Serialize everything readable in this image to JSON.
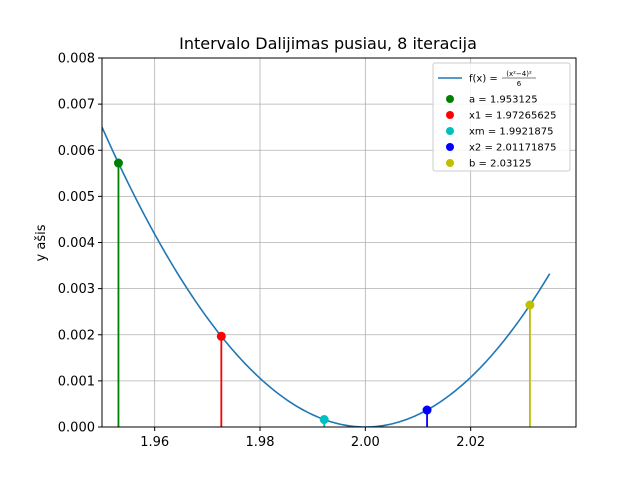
{
  "chart_data": {
    "type": "line",
    "title": "Intervalo Dalijimas pusiau, 8 iteracija",
    "xlabel": "",
    "ylabel": "y ašis",
    "xlim": [
      1.95,
      2.04
    ],
    "ylim": [
      0.0,
      0.008
    ],
    "grid": true,
    "legend_position": "top-right",
    "x_ticks": [
      "1.96",
      "1.98",
      "2.00",
      "2.02"
    ],
    "y_ticks": [
      "0.000",
      "0.001",
      "0.002",
      "0.003",
      "0.004",
      "0.005",
      "0.006",
      "0.007",
      "0.008"
    ],
    "curve": {
      "name": "f(x) = (x²−4)²/6",
      "legend_main": "f(x) = ",
      "legend_num": "(x²−4)²",
      "legend_den": "6",
      "color": "#1f77b4",
      "x_range": [
        1.95,
        2.035
      ]
    },
    "points": [
      {
        "label": "a = 1.953125",
        "x": 1.953125,
        "color": "#008000"
      },
      {
        "label": "x1 = 1.97265625",
        "x": 1.97265625,
        "color": "#ff0000"
      },
      {
        "label": "xm = 1.9921875",
        "x": 1.9921875,
        "color": "#00bfbf"
      },
      {
        "label": "x2 = 2.01171875",
        "x": 2.01171875,
        "color": "#0000ff"
      },
      {
        "label": "b = 2.03125",
        "x": 2.03125,
        "color": "#bfbf00"
      }
    ]
  }
}
